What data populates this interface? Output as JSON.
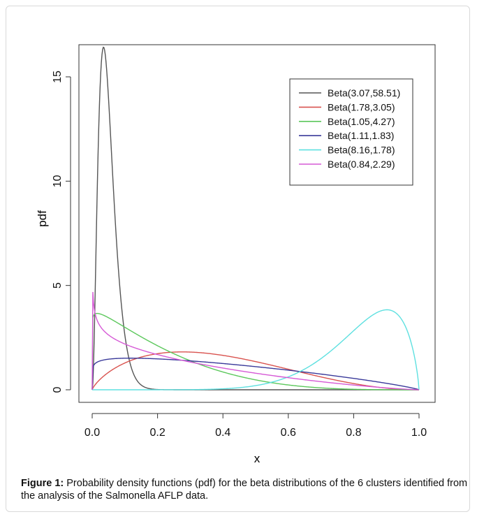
{
  "chart_data": {
    "type": "line",
    "xlabel": "x",
    "ylabel": "pdf",
    "xlim": [
      0,
      1
    ],
    "ylim": [
      0,
      16.2
    ],
    "xticks": [
      "0.0",
      "0.2",
      "0.4",
      "0.6",
      "0.8",
      "1.0"
    ],
    "yticks": [
      "0",
      "5",
      "10",
      "15"
    ],
    "grid": false,
    "legend_position": "top-right",
    "series": [
      {
        "name": "Beta(3.07,58.51)",
        "color": "#555555",
        "a": 3.07,
        "b": 58.51
      },
      {
        "name": "Beta(1.78,3.05)",
        "color": "#d9534f",
        "a": 1.78,
        "b": 3.05
      },
      {
        "name": "Beta(1.05,4.27)",
        "color": "#5cc85c",
        "a": 1.05,
        "b": 4.27
      },
      {
        "name": "Beta(1.11,1.83)",
        "color": "#3a3a9a",
        "a": 1.11,
        "b": 1.83
      },
      {
        "name": "Beta(8.16,1.78)",
        "color": "#5ee0e0",
        "a": 8.16,
        "b": 1.78
      },
      {
        "name": "Beta(0.84,2.29)",
        "color": "#d65ad6",
        "a": 0.84,
        "b": 2.29
      }
    ]
  },
  "caption": {
    "label": "Figure 1:",
    "text": "Probability density functions (pdf) for the beta distributions of the 6 clusters identified from the analysis of the Salmonella AFLP data."
  }
}
